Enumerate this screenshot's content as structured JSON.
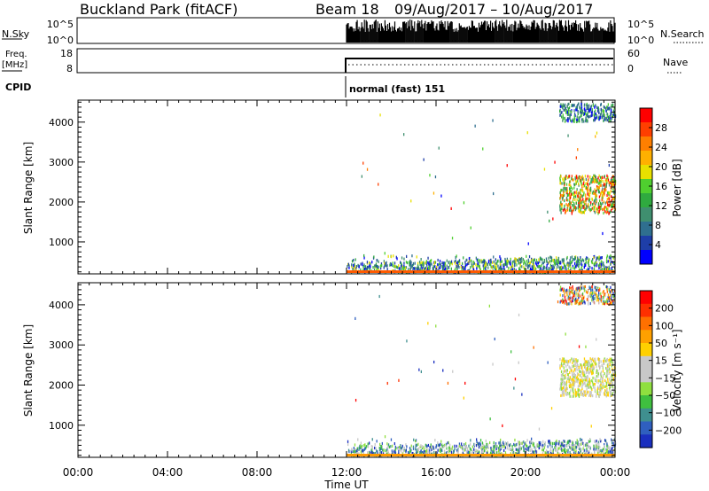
{
  "header": {
    "station": "Buckland Park (fitACF)",
    "beam_label": "Beam 18",
    "date_range": "09/Aug/2017 – 10/Aug/2017"
  },
  "sky_panel": {
    "left_label": "N.Sky",
    "right_label": "N.Search",
    "left_ticks": [
      "10^5",
      "10^0"
    ],
    "right_ticks": [
      "10^5",
      "10^0"
    ]
  },
  "freq_panel": {
    "left_label_1": "Freq.",
    "left_label_2": "[MHz]",
    "left_ticks": [
      "18",
      "8"
    ],
    "right_label": "Nave",
    "right_ticks": [
      "60",
      "0"
    ]
  },
  "cpid": {
    "label": "CPID",
    "mode": "normal (fast) 151"
  },
  "chart_data": [
    {
      "type": "heatmap",
      "name": "power",
      "ylabel": "Slant Range [km]",
      "yticks": [
        1000,
        2000,
        3000,
        4000
      ],
      "ylim": [
        200,
        4550
      ],
      "colorbar_label": "Power [dB]",
      "colorbar_ticks": [
        "4",
        "8",
        "12",
        "16",
        "20",
        "24",
        "28"
      ],
      "colorbar_colors": [
        "#0000ff",
        "#1e3ea8",
        "#2f6f8f",
        "#3f8f6f",
        "#2faa3f",
        "#4fcf2f",
        "#e8e000",
        "#ffb000",
        "#ff7f00",
        "#ff3f00",
        "#ff0000"
      ],
      "data_start_hour": 12,
      "regions": [
        {
          "t_start": 12.0,
          "t_end": 24.0,
          "r_min": 200,
          "r_max": 650,
          "level": "low"
        },
        {
          "t_start": 21.5,
          "t_end": 24.0,
          "r_min": 1700,
          "r_max": 2650,
          "level": "high"
        },
        {
          "t_start": 21.5,
          "t_end": 24.0,
          "r_min": 4000,
          "r_max": 4450,
          "level": "mid"
        }
      ]
    },
    {
      "type": "heatmap",
      "name": "velocity",
      "ylabel": "Slant Range [km]",
      "yticks": [
        1000,
        2000,
        3000,
        4000
      ],
      "ylim": [
        200,
        4550
      ],
      "colorbar_label": "Velocity [m s⁻¹]",
      "colorbar_ticks": [
        "200",
        "100",
        "50",
        "15",
        "−15",
        "−50",
        "−100",
        "−200"
      ],
      "colorbar_colors": [
        "#1a2fbf",
        "#2f5fbf",
        "#3f8f8f",
        "#3fbf3f",
        "#8fdf3f",
        "#c8c8c8",
        "#c8c8c8",
        "#ffd000",
        "#ffa000",
        "#ff7000",
        "#ff3000",
        "#ff0000"
      ],
      "data_start_hour": 12,
      "regions": [
        {
          "t_start": 12.0,
          "t_end": 24.0,
          "r_min": 200,
          "r_max": 650,
          "level": "low"
        },
        {
          "t_start": 21.5,
          "t_end": 24.0,
          "r_min": 1700,
          "r_max": 2650,
          "level": "gray"
        },
        {
          "t_start": 21.5,
          "t_end": 24.0,
          "r_min": 4000,
          "r_max": 4450,
          "level": "mixed"
        }
      ]
    }
  ],
  "time_axis": {
    "label": "Time UT",
    "ticks": [
      "00:00",
      "04:00",
      "08:00",
      "12:00",
      "16:00",
      "20:00",
      "00:00"
    ]
  }
}
